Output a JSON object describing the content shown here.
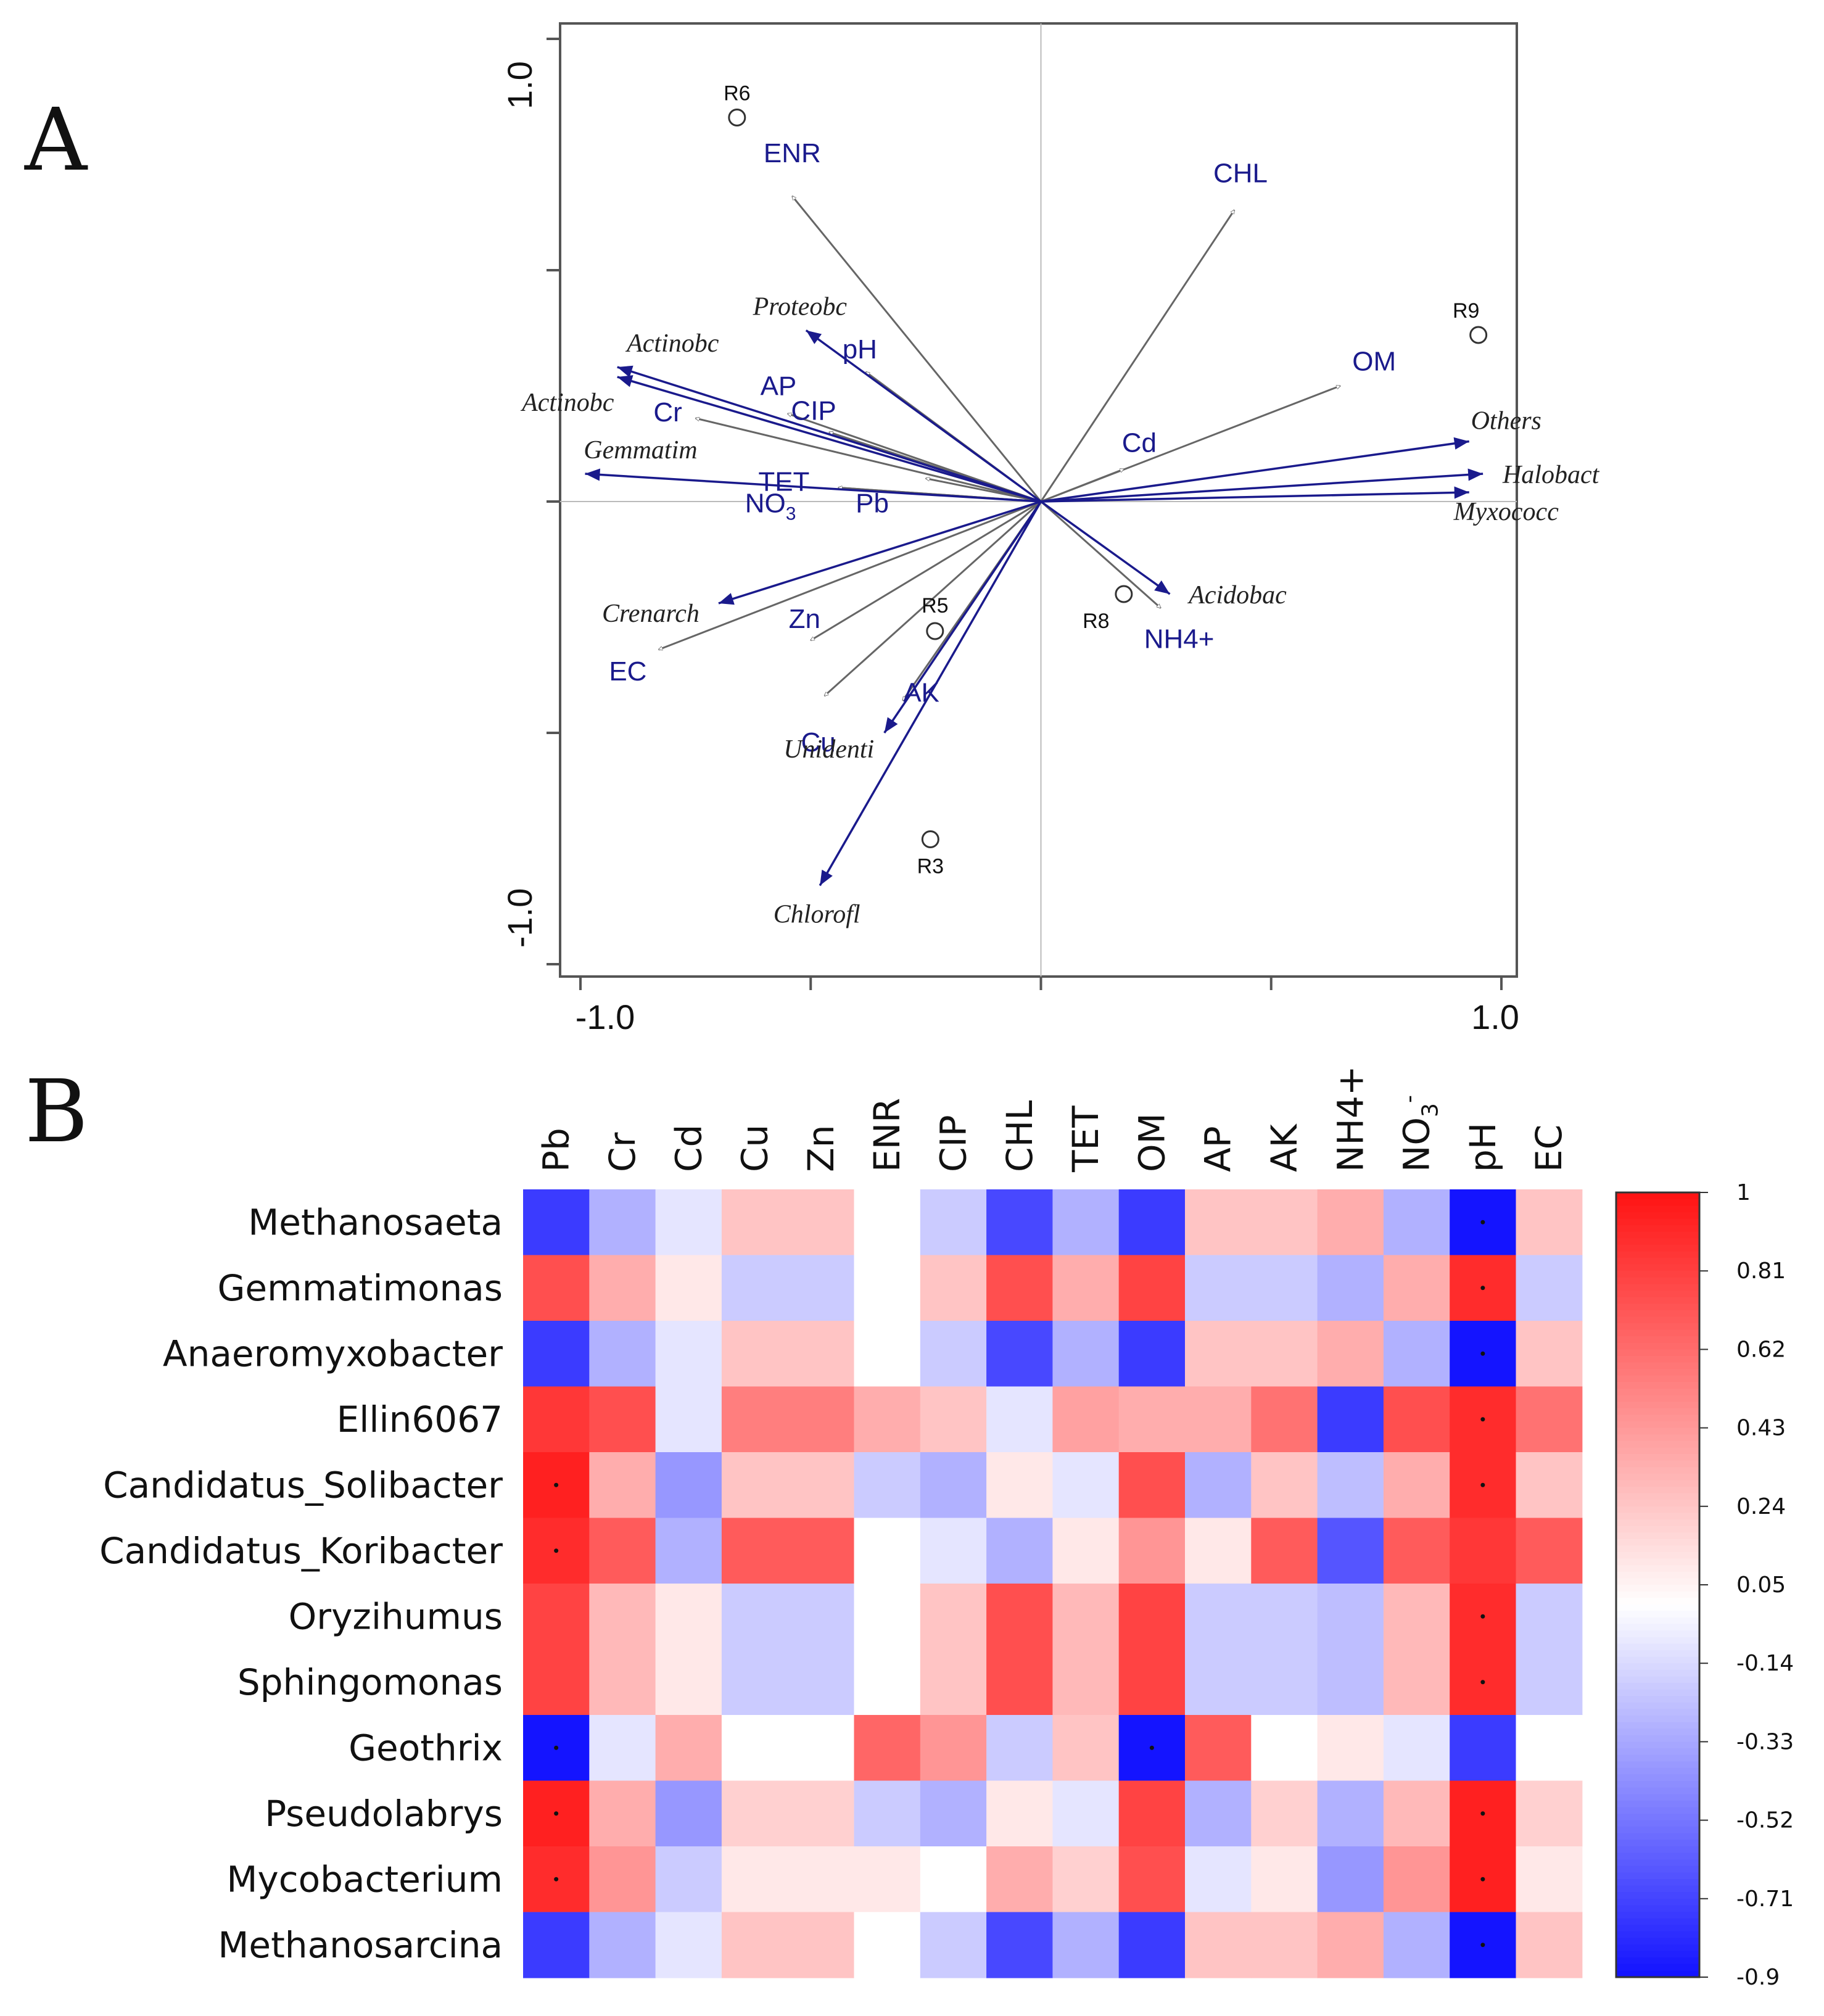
{
  "colors": {
    "env_arrow": "#666666",
    "species_arrow": "#1a1a8c",
    "heat_low": "#1414ff",
    "heat_mid": "#ffffff",
    "heat_high": "#ff1414"
  },
  "chart_data": [
    {
      "panel": "A",
      "type": "scatter",
      "subtype": "rda-biplot",
      "x_ticks": [
        "-1.0",
        "1.0"
      ],
      "y_ticks": [
        "1.0",
        "-1.0"
      ],
      "xlim": [
        -1.0,
        1.0
      ],
      "ylim": [
        -1.0,
        1.0
      ],
      "env_vectors": [
        {
          "name": "ENR",
          "x": -0.54,
          "y": 0.66
        },
        {
          "name": "CHL",
          "x": 0.42,
          "y": 0.63
        },
        {
          "name": "OM",
          "x": 0.65,
          "y": 0.25
        },
        {
          "name": "Cd",
          "x": 0.18,
          "y": 0.07
        },
        {
          "name": "pH",
          "x": -0.38,
          "y": 0.28
        },
        {
          "name": "AP",
          "x": -0.55,
          "y": 0.19
        },
        {
          "name": "CIP",
          "x": -0.46,
          "y": 0.15
        },
        {
          "name": "Cr",
          "x": -0.75,
          "y": 0.18
        },
        {
          "name": "TET",
          "x": -0.25,
          "y": 0.05
        },
        {
          "name": "NO3",
          "x": -0.44,
          "y": 0.03
        },
        {
          "name": "Pb",
          "x": -0.44,
          "y": 0.03
        },
        {
          "name": "EC",
          "x": -0.83,
          "y": -0.32
        },
        {
          "name": "Zn",
          "x": -0.5,
          "y": -0.3
        },
        {
          "name": "Cu",
          "x": -0.47,
          "y": -0.42
        },
        {
          "name": "AK",
          "x": -0.3,
          "y": -0.43
        },
        {
          "name": "NH4+",
          "x": 0.26,
          "y": -0.23
        }
      ],
      "species_vectors": [
        {
          "name": "Proteobc",
          "x": -0.51,
          "y": 0.37
        },
        {
          "name": "Actinobc",
          "x": -0.92,
          "y": 0.28
        },
        {
          "name": "Actinobc",
          "x": -0.92,
          "y": 0.28
        },
        {
          "name": "Gemmatim",
          "x": -0.99,
          "y": 0.06
        },
        {
          "name": "Crenarch",
          "x": -0.7,
          "y": -0.22
        },
        {
          "name": "Unidenti",
          "x": -0.34,
          "y": -0.5
        },
        {
          "name": "Chlorofl",
          "x": -0.48,
          "y": -0.83
        },
        {
          "name": "Acidobac",
          "x": 0.28,
          "y": -0.2
        },
        {
          "name": "Others",
          "x": 0.93,
          "y": 0.13
        },
        {
          "name": "Halobact",
          "x": 0.96,
          "y": 0.06
        },
        {
          "name": "Myxococc",
          "x": 0.93,
          "y": 0.02
        }
      ],
      "sites": [
        {
          "name": "R6",
          "x": -0.66,
          "y": 0.83
        },
        {
          "name": "R9",
          "x": 0.95,
          "y": 0.36
        },
        {
          "name": "R5",
          "x": -0.23,
          "y": -0.28
        },
        {
          "name": "R8",
          "x": 0.18,
          "y": -0.2
        },
        {
          "name": "R3",
          "x": -0.24,
          "y": -0.73
        }
      ]
    },
    {
      "panel": "B",
      "type": "heatmap",
      "columns": [
        "Pb",
        "Cr",
        "Cd",
        "Cu",
        "Zn",
        "ENR",
        "CIP",
        "CHL",
        "TET",
        "OM",
        "AP",
        "AK",
        "NH4+",
        "NO",
        "pH",
        "EC"
      ],
      "column_sub": {
        "NO": [
          "3",
          "-"
        ]
      },
      "rows": [
        "Methanosaeta",
        "Gemmatimonas",
        "Anaeromyxobacter",
        "Ellin6067",
        "Candidatus_Solibacter",
        "Candidatus_Koribacter",
        "Oryzihumus",
        "Sphingomonas",
        "Geothrix",
        "Pseudolabrys",
        "Mycobacterium",
        "Methanosarcina"
      ],
      "values": [
        [
          -0.75,
          -0.3,
          -0.1,
          0.25,
          0.25,
          0,
          -0.2,
          -0.7,
          -0.3,
          -0.75,
          0.25,
          0.25,
          0.35,
          -0.3,
          -0.9,
          0.25
        ],
        [
          0.75,
          0.35,
          0.1,
          -0.2,
          -0.2,
          0,
          0.25,
          0.75,
          0.35,
          0.8,
          -0.2,
          -0.2,
          -0.3,
          0.35,
          0.9,
          -0.2
        ],
        [
          -0.75,
          -0.3,
          -0.1,
          0.25,
          0.25,
          0,
          -0.2,
          -0.7,
          -0.3,
          -0.75,
          0.25,
          0.25,
          0.35,
          -0.3,
          -0.9,
          0.25
        ],
        [
          0.85,
          0.75,
          -0.1,
          0.55,
          0.55,
          0.35,
          0.25,
          -0.1,
          0.4,
          0.35,
          0.35,
          0.6,
          -0.75,
          0.75,
          0.9,
          0.6
        ],
        [
          0.95,
          0.35,
          -0.4,
          0.25,
          0.25,
          -0.2,
          -0.3,
          0.1,
          -0.1,
          0.75,
          -0.3,
          0.25,
          -0.25,
          0.35,
          0.9,
          0.25
        ],
        [
          0.9,
          0.7,
          -0.3,
          0.7,
          0.7,
          0,
          -0.1,
          -0.3,
          0.1,
          0.45,
          0.1,
          0.7,
          -0.65,
          0.7,
          0.85,
          0.7
        ],
        [
          0.8,
          0.3,
          0.1,
          -0.2,
          -0.2,
          0,
          0.25,
          0.75,
          0.3,
          0.8,
          -0.2,
          -0.2,
          -0.25,
          0.3,
          0.9,
          -0.2
        ],
        [
          0.8,
          0.3,
          0.1,
          -0.2,
          -0.2,
          0,
          0.25,
          0.75,
          0.3,
          0.8,
          -0.2,
          -0.2,
          -0.25,
          0.3,
          0.9,
          -0.2
        ],
        [
          -0.9,
          -0.1,
          0.35,
          0,
          0,
          0.65,
          0.45,
          -0.2,
          0.25,
          -0.95,
          0.7,
          0,
          0.1,
          -0.1,
          -0.75,
          0
        ],
        [
          0.95,
          0.35,
          -0.4,
          0.2,
          0.2,
          -0.2,
          -0.3,
          0.1,
          -0.1,
          0.8,
          -0.3,
          0.2,
          -0.3,
          0.3,
          0.95,
          0.2
        ],
        [
          0.9,
          0.45,
          -0.2,
          0.1,
          0.1,
          0.1,
          0,
          0.35,
          0.2,
          0.75,
          -0.1,
          0.1,
          -0.4,
          0.45,
          0.95,
          0.1
        ],
        [
          -0.75,
          -0.3,
          -0.1,
          0.25,
          0.25,
          0,
          -0.2,
          -0.7,
          -0.3,
          -0.75,
          0.25,
          0.25,
          0.35,
          -0.3,
          -0.9,
          0.25
        ]
      ],
      "significant": [
        [
          0,
          14
        ],
        [
          1,
          14
        ],
        [
          2,
          14
        ],
        [
          3,
          14
        ],
        [
          4,
          0
        ],
        [
          4,
          14
        ],
        [
          5,
          0
        ],
        [
          6,
          14
        ],
        [
          7,
          14
        ],
        [
          8,
          0
        ],
        [
          8,
          9
        ],
        [
          9,
          0
        ],
        [
          9,
          14
        ],
        [
          10,
          0
        ],
        [
          10,
          14
        ],
        [
          11,
          14
        ]
      ],
      "colorbar_ticks": [
        "1",
        "0.81",
        "0.62",
        "0.43",
        "0.24",
        "0.05",
        "-0.14",
        "-0.33",
        "-0.52",
        "-0.71",
        "-0.9"
      ],
      "vmin": -0.9,
      "vmax": 1.0
    }
  ],
  "panel_a": {
    "letter": "A"
  },
  "panel_b": {
    "letter": "B"
  }
}
